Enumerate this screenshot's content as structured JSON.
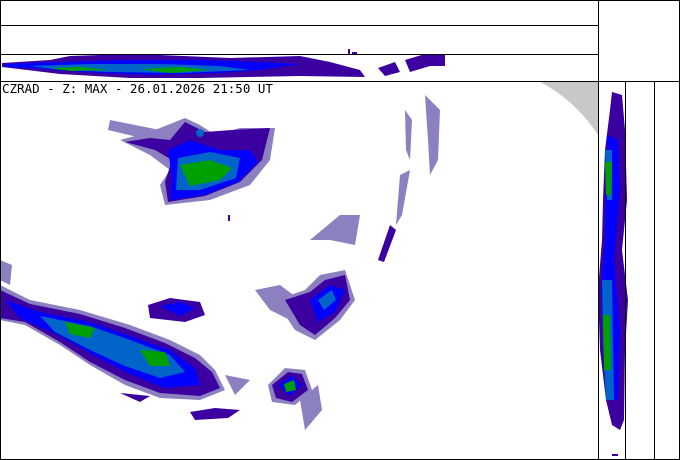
{
  "title": "CZRAD - Z: MAX - 26.01.2026 21:50 UT",
  "colors": {
    "lavender": "#8c80c0",
    "dark_purple": "#3c00a0",
    "blue": "#0000ff",
    "teal": "#0064c8",
    "green": "#00a000",
    "out_of_range": "#c8c8c8"
  }
}
